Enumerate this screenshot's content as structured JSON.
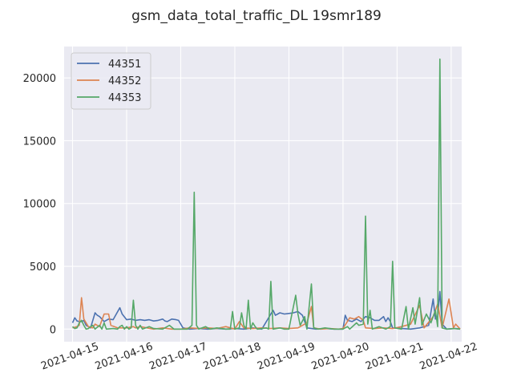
{
  "chart_data": {
    "type": "line",
    "title": "gsm_data_total_traffic_DL 19smr189",
    "xlabel": "",
    "ylabel": "",
    "x_tick_labels": [
      "2021-04-15",
      "2021-04-16",
      "2021-04-17",
      "2021-04-18",
      "2021-04-19",
      "2021-04-20",
      "2021-04-21",
      "2021-04-22"
    ],
    "y_ticks": [
      0,
      5000,
      10000,
      15000,
      20000
    ],
    "y_tick_labels": [
      "0",
      "5000",
      "10000",
      "15000",
      "20000"
    ],
    "ylim": [
      -1000,
      22500
    ],
    "xlim": [
      "2021-04-14T20:16",
      "2021-04-22T04:40"
    ],
    "grid": true,
    "legend_position": "top-left",
    "series": [
      {
        "name": "44351",
        "color": "#4c72b0",
        "points": [
          [
            "2021-04-15T00:00",
            500
          ],
          [
            "2021-04-15T01:00",
            900
          ],
          [
            "2021-04-15T02:00",
            650
          ],
          [
            "2021-04-15T03:00",
            600
          ],
          [
            "2021-04-15T04:00",
            600
          ],
          [
            "2021-04-15T05:00",
            700
          ],
          [
            "2021-04-15T06:00",
            300
          ],
          [
            "2021-04-15T07:00",
            200
          ],
          [
            "2021-04-15T08:00",
            100
          ],
          [
            "2021-04-15T10:00",
            1300
          ],
          [
            "2021-04-15T11:00",
            1100
          ],
          [
            "2021-04-15T12:00",
            1000
          ],
          [
            "2021-04-15T13:00",
            800
          ],
          [
            "2021-04-15T14:00",
            600
          ],
          [
            "2021-04-15T16:00",
            800
          ],
          [
            "2021-04-15T18:00",
            750
          ],
          [
            "2021-04-15T21:00",
            1700
          ],
          [
            "2021-04-15T22:00",
            1200
          ],
          [
            "2021-04-16T00:00",
            750
          ],
          [
            "2021-04-16T02:00",
            800
          ],
          [
            "2021-04-16T04:00",
            700
          ],
          [
            "2021-04-16T06:00",
            750
          ],
          [
            "2021-04-16T08:00",
            700
          ],
          [
            "2021-04-16T10:00",
            750
          ],
          [
            "2021-04-16T12:00",
            650
          ],
          [
            "2021-04-16T14:00",
            700
          ],
          [
            "2021-04-16T16:00",
            800
          ],
          [
            "2021-04-16T17:00",
            650
          ],
          [
            "2021-04-16T18:00",
            600
          ],
          [
            "2021-04-16T20:00",
            800
          ],
          [
            "2021-04-16T22:00",
            750
          ],
          [
            "2021-04-16T23:00",
            700
          ],
          [
            "2021-04-17T01:00",
            100
          ],
          [
            "2021-04-17T04:00",
            0
          ],
          [
            "2021-04-17T08:00",
            50
          ],
          [
            "2021-04-17T12:00",
            0
          ],
          [
            "2021-04-17T16:00",
            50
          ],
          [
            "2021-04-17T20:00",
            0
          ],
          [
            "2021-04-18T00:00",
            50
          ],
          [
            "2021-04-18T04:00",
            0
          ],
          [
            "2021-04-18T08:00",
            100
          ],
          [
            "2021-04-18T12:00",
            0
          ],
          [
            "2021-04-18T16:00",
            1200
          ],
          [
            "2021-04-18T17:00",
            1500
          ],
          [
            "2021-04-18T18:00",
            1100
          ],
          [
            "2021-04-18T20:00",
            1300
          ],
          [
            "2021-04-18T22:00",
            1200
          ],
          [
            "2021-04-19T00:00",
            1250
          ],
          [
            "2021-04-19T02:00",
            1300
          ],
          [
            "2021-04-19T04:00",
            1400
          ],
          [
            "2021-04-19T06:00",
            1100
          ],
          [
            "2021-04-19T07:00",
            600
          ],
          [
            "2021-04-19T08:00",
            100
          ],
          [
            "2021-04-19T12:00",
            0
          ],
          [
            "2021-04-19T16:00",
            50
          ],
          [
            "2021-04-19T20:00",
            0
          ],
          [
            "2021-04-20T00:00",
            0
          ],
          [
            "2021-04-20T01:00",
            1100
          ],
          [
            "2021-04-20T02:00",
            700
          ],
          [
            "2021-04-20T04:00",
            600
          ],
          [
            "2021-04-20T06:00",
            800
          ],
          [
            "2021-04-20T08:00",
            600
          ],
          [
            "2021-04-20T10:00",
            1000
          ],
          [
            "2021-04-20T12:00",
            900
          ],
          [
            "2021-04-20T14:00",
            700
          ],
          [
            "2021-04-20T16:00",
            700
          ],
          [
            "2021-04-20T18:00",
            1000
          ],
          [
            "2021-04-20T19:00",
            600
          ],
          [
            "2021-04-20T20:00",
            900
          ],
          [
            "2021-04-20T21:00",
            600
          ],
          [
            "2021-04-20T22:00",
            100
          ],
          [
            "2021-04-21T02:00",
            50
          ],
          [
            "2021-04-21T06:00",
            0
          ],
          [
            "2021-04-21T10:00",
            100
          ],
          [
            "2021-04-21T14:00",
            300
          ],
          [
            "2021-04-21T16:00",
            2400
          ],
          [
            "2021-04-21T17:00",
            800
          ],
          [
            "2021-04-21T18:00",
            1000
          ],
          [
            "2021-04-21T19:00",
            3000
          ],
          [
            "2021-04-21T20:00",
            400
          ],
          [
            "2021-04-21T22:00",
            0
          ],
          [
            "2021-04-22T02:00",
            50
          ],
          [
            "2021-04-22T04:00",
            0
          ]
        ]
      },
      {
        "name": "44352",
        "color": "#dd8452",
        "points": [
          [
            "2021-04-15T00:00",
            100
          ],
          [
            "2021-04-15T02:00",
            200
          ],
          [
            "2021-04-15T03:00",
            300
          ],
          [
            "2021-04-15T04:00",
            2500
          ],
          [
            "2021-04-15T05:00",
            800
          ],
          [
            "2021-04-15T07:00",
            200
          ],
          [
            "2021-04-15T09:00",
            100
          ],
          [
            "2021-04-15T10:00",
            400
          ],
          [
            "2021-04-15T12:00",
            200
          ],
          [
            "2021-04-15T14:00",
            1200
          ],
          [
            "2021-04-15T16:00",
            1200
          ],
          [
            "2021-04-15T17:00",
            300
          ],
          [
            "2021-04-15T20:00",
            100
          ],
          [
            "2021-04-16T00:00",
            100
          ],
          [
            "2021-04-16T03:00",
            200
          ],
          [
            "2021-04-16T04:00",
            100
          ],
          [
            "2021-04-16T06:00",
            200
          ],
          [
            "2021-04-16T09:00",
            100
          ],
          [
            "2021-04-16T12:00",
            0
          ],
          [
            "2021-04-16T16:00",
            100
          ],
          [
            "2021-04-16T20:00",
            0
          ],
          [
            "2021-04-17T00:00",
            0
          ],
          [
            "2021-04-17T04:00",
            100
          ],
          [
            "2021-04-17T08:00",
            50
          ],
          [
            "2021-04-17T12:00",
            100
          ],
          [
            "2021-04-17T16:00",
            50
          ],
          [
            "2021-04-17T20:00",
            200
          ],
          [
            "2021-04-18T00:00",
            0
          ],
          [
            "2021-04-18T02:00",
            600
          ],
          [
            "2021-04-18T04:00",
            100
          ],
          [
            "2021-04-18T08:00",
            50
          ],
          [
            "2021-04-18T12:00",
            100
          ],
          [
            "2021-04-18T16:00",
            50
          ],
          [
            "2021-04-18T20:00",
            100
          ],
          [
            "2021-04-19T00:00",
            50
          ],
          [
            "2021-04-19T04:00",
            100
          ],
          [
            "2021-04-19T08:00",
            500
          ],
          [
            "2021-04-19T10:00",
            1800
          ],
          [
            "2021-04-19T11:00",
            100
          ],
          [
            "2021-04-19T14:00",
            0
          ],
          [
            "2021-04-19T18:00",
            50
          ],
          [
            "2021-04-19T22:00",
            0
          ],
          [
            "2021-04-20T00:00",
            50
          ],
          [
            "2021-04-20T03:00",
            900
          ],
          [
            "2021-04-20T05:00",
            800
          ],
          [
            "2021-04-20T07:00",
            1000
          ],
          [
            "2021-04-20T09:00",
            700
          ],
          [
            "2021-04-20T10:00",
            100
          ],
          [
            "2021-04-20T14:00",
            50
          ],
          [
            "2021-04-20T18:00",
            100
          ],
          [
            "2021-04-20T22:00",
            50
          ],
          [
            "2021-04-21T02:00",
            200
          ],
          [
            "2021-04-21T06:00",
            400
          ],
          [
            "2021-04-21T10:00",
            1900
          ],
          [
            "2021-04-21T12:00",
            100
          ],
          [
            "2021-04-21T16:00",
            1000
          ],
          [
            "2021-04-21T18:00",
            2000
          ],
          [
            "2021-04-21T20:00",
            100
          ],
          [
            "2021-04-21T23:00",
            2400
          ],
          [
            "2021-04-22T01:00",
            100
          ],
          [
            "2021-04-22T02:00",
            400
          ],
          [
            "2021-04-22T04:00",
            0
          ]
        ]
      },
      {
        "name": "44353",
        "color": "#55a868",
        "points": [
          [
            "2021-04-15T00:00",
            200
          ],
          [
            "2021-04-15T01:00",
            50
          ],
          [
            "2021-04-15T02:00",
            100
          ],
          [
            "2021-04-15T03:00",
            500
          ],
          [
            "2021-04-15T04:00",
            700
          ],
          [
            "2021-04-15T05:00",
            300
          ],
          [
            "2021-04-15T06:00",
            0
          ],
          [
            "2021-04-15T07:00",
            50
          ],
          [
            "2021-04-15T08:00",
            200
          ],
          [
            "2021-04-15T09:00",
            300
          ],
          [
            "2021-04-15T10:00",
            0
          ],
          [
            "2021-04-15T12:00",
            300
          ],
          [
            "2021-04-15T13:00",
            0
          ],
          [
            "2021-04-15T14:00",
            500
          ],
          [
            "2021-04-15T15:00",
            0
          ],
          [
            "2021-04-15T18:00",
            50
          ],
          [
            "2021-04-15T20:00",
            0
          ],
          [
            "2021-04-15T21:00",
            200
          ],
          [
            "2021-04-15T22:00",
            300
          ],
          [
            "2021-04-15T23:00",
            0
          ],
          [
            "2021-04-16T00:00",
            200
          ],
          [
            "2021-04-16T01:00",
            0
          ],
          [
            "2021-04-16T02:00",
            100
          ],
          [
            "2021-04-16T03:00",
            2300
          ],
          [
            "2021-04-16T04:00",
            300
          ],
          [
            "2021-04-16T05:00",
            0
          ],
          [
            "2021-04-16T06:00",
            300
          ],
          [
            "2021-04-16T07:00",
            0
          ],
          [
            "2021-04-16T10:00",
            200
          ],
          [
            "2021-04-16T12:00",
            50
          ],
          [
            "2021-04-16T16:00",
            0
          ],
          [
            "2021-04-16T19:00",
            300
          ],
          [
            "2021-04-16T21:00",
            0
          ],
          [
            "2021-04-17T00:00",
            0
          ],
          [
            "2021-04-17T03:00",
            0
          ],
          [
            "2021-04-17T05:00",
            300
          ],
          [
            "2021-04-17T06:00",
            10900
          ],
          [
            "2021-04-17T07:00",
            300
          ],
          [
            "2021-04-17T08:00",
            0
          ],
          [
            "2021-04-17T11:00",
            200
          ],
          [
            "2021-04-17T13:00",
            0
          ],
          [
            "2021-04-17T16:00",
            100
          ],
          [
            "2021-04-17T20:00",
            0
          ],
          [
            "2021-04-17T22:00",
            0
          ],
          [
            "2021-04-17T23:00",
            1400
          ],
          [
            "2021-04-18T00:00",
            0
          ],
          [
            "2021-04-18T02:00",
            100
          ],
          [
            "2021-04-18T03:00",
            1300
          ],
          [
            "2021-04-18T04:00",
            300
          ],
          [
            "2021-04-18T05:00",
            0
          ],
          [
            "2021-04-18T06:00",
            2300
          ],
          [
            "2021-04-18T07:00",
            0
          ],
          [
            "2021-04-18T08:00",
            500
          ],
          [
            "2021-04-18T09:00",
            200
          ],
          [
            "2021-04-18T10:00",
            0
          ],
          [
            "2021-04-18T14:00",
            100
          ],
          [
            "2021-04-18T15:00",
            0
          ],
          [
            "2021-04-18T16:00",
            3800
          ],
          [
            "2021-04-18T17:00",
            0
          ],
          [
            "2021-04-18T20:00",
            100
          ],
          [
            "2021-04-18T22:00",
            0
          ],
          [
            "2021-04-19T00:00",
            0
          ],
          [
            "2021-04-19T03:00",
            2700
          ],
          [
            "2021-04-19T04:00",
            1200
          ],
          [
            "2021-04-19T05:00",
            300
          ],
          [
            "2021-04-19T07:00",
            1000
          ],
          [
            "2021-04-19T08:00",
            0
          ],
          [
            "2021-04-19T10:00",
            3600
          ],
          [
            "2021-04-19T11:00",
            100
          ],
          [
            "2021-04-19T13:00",
            0
          ],
          [
            "2021-04-19T16:00",
            100
          ],
          [
            "2021-04-19T20:00",
            0
          ],
          [
            "2021-04-20T00:00",
            0
          ],
          [
            "2021-04-20T02:00",
            200
          ],
          [
            "2021-04-20T03:00",
            0
          ],
          [
            "2021-04-20T06:00",
            500
          ],
          [
            "2021-04-20T07:00",
            300
          ],
          [
            "2021-04-20T09:00",
            400
          ],
          [
            "2021-04-20T10:00",
            9000
          ],
          [
            "2021-04-20T11:00",
            400
          ],
          [
            "2021-04-20T12:00",
            1500
          ],
          [
            "2021-04-20T13:00",
            0
          ],
          [
            "2021-04-20T16:00",
            200
          ],
          [
            "2021-04-20T19:00",
            0
          ],
          [
            "2021-04-20T21:00",
            200
          ],
          [
            "2021-04-20T22:00",
            5400
          ],
          [
            "2021-04-20T23:00",
            100
          ],
          [
            "2021-04-21T02:00",
            0
          ],
          [
            "2021-04-21T04:00",
            1800
          ],
          [
            "2021-04-21T05:00",
            0
          ],
          [
            "2021-04-21T07:00",
            1700
          ],
          [
            "2021-04-21T08:00",
            400
          ],
          [
            "2021-04-21T10:00",
            2500
          ],
          [
            "2021-04-21T11:00",
            300
          ],
          [
            "2021-04-21T13:00",
            1200
          ],
          [
            "2021-04-21T15:00",
            500
          ],
          [
            "2021-04-21T17:00",
            1500
          ],
          [
            "2021-04-21T18:00",
            200
          ],
          [
            "2021-04-21T19:00",
            21500
          ],
          [
            "2021-04-21T20:00",
            100
          ],
          [
            "2021-04-21T22:00",
            0
          ],
          [
            "2021-04-22T01:00",
            50
          ],
          [
            "2021-04-22T04:00",
            0
          ]
        ]
      }
    ]
  }
}
